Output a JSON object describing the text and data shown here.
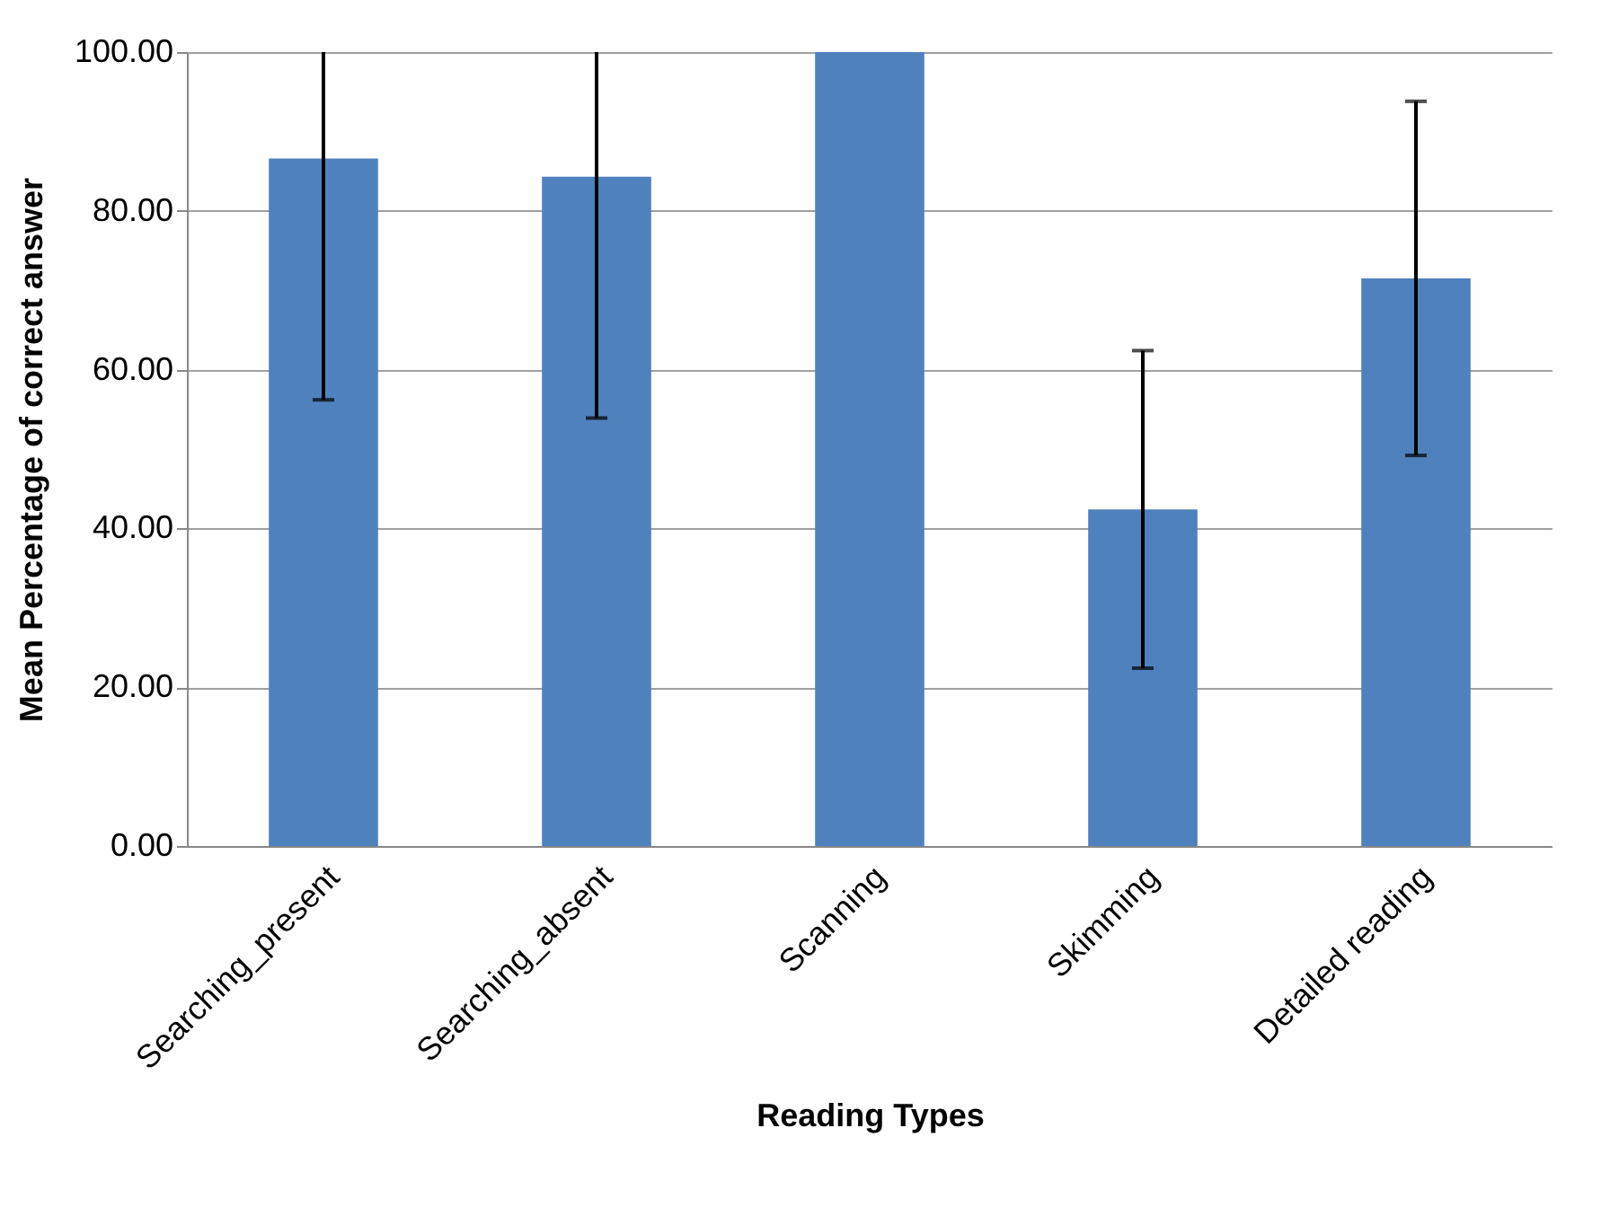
{
  "chart_data": {
    "type": "bar",
    "xlabel": "Reading Types",
    "ylabel": "Mean Percentage of correct answer",
    "categories": [
      "Searching_present",
      "Searching_absent",
      "Scanning",
      "Skimming",
      "Detailed reading"
    ],
    "values": [
      86.6,
      84.3,
      100,
      42.4,
      71.5
    ],
    "errors": [
      [
        56.2,
        100
      ],
      [
        53.9,
        100
      ],
      null,
      20,
      22.3
    ],
    "color": "#4f81bd",
    "ylim": [
      0,
      100
    ],
    "yticks": [
      {
        "value": 0,
        "label": "0.00"
      },
      {
        "value": 20,
        "label": "20.00"
      },
      {
        "value": 40,
        "label": "40.00"
      },
      {
        "value": 60,
        "label": "60.00"
      },
      {
        "value": 80,
        "label": "80.00"
      },
      {
        "value": 100,
        "label": "100.00"
      }
    ],
    "grid": "y"
  }
}
